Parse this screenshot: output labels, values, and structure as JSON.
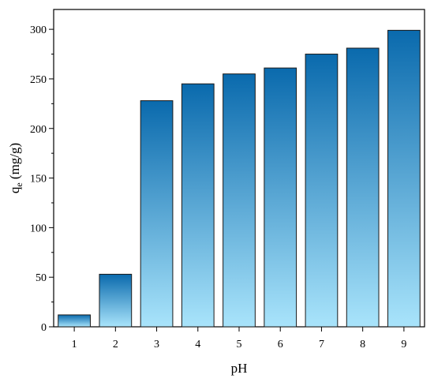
{
  "chart_data": {
    "type": "bar",
    "categories": [
      "1",
      "2",
      "3",
      "4",
      "5",
      "6",
      "7",
      "8",
      "9"
    ],
    "values": [
      12,
      53,
      228,
      245,
      255,
      261,
      275,
      281,
      299
    ],
    "xlabel": "pH",
    "ylabel": {
      "main": "q",
      "sub": "e",
      "unit": " (mg/g)"
    },
    "ylim": [
      0,
      320
    ],
    "yticks": [
      "0",
      "50",
      "100",
      "150",
      "200",
      "250",
      "300"
    ],
    "grid": false,
    "legend": "none",
    "colors": {
      "bar_top": "#0a6aad",
      "bar_bottom": "#a9e4fb",
      "bar_edge": "#1a1a1a",
      "axis": "#000000"
    }
  }
}
